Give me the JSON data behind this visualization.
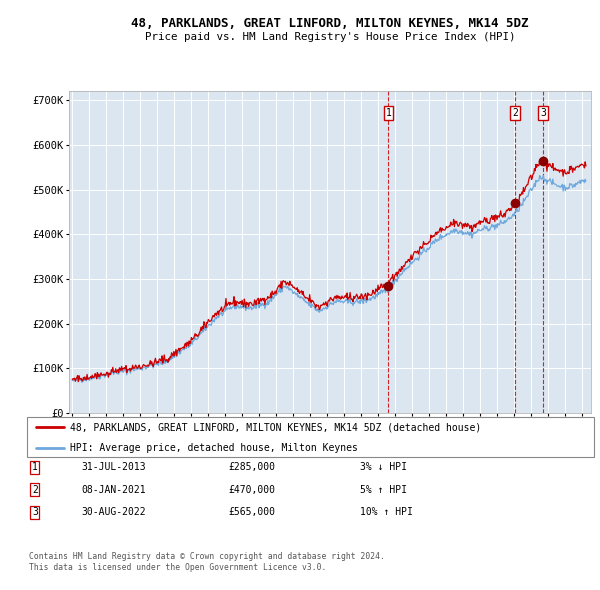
{
  "title": "48, PARKLANDS, GREAT LINFORD, MILTON KEYNES, MK14 5DZ",
  "subtitle": "Price paid vs. HM Land Registry's House Price Index (HPI)",
  "legend_line1": "48, PARKLANDS, GREAT LINFORD, MILTON KEYNES, MK14 5DZ (detached house)",
  "legend_line2": "HPI: Average price, detached house, Milton Keynes",
  "footer1": "Contains HM Land Registry data © Crown copyright and database right 2024.",
  "footer2": "This data is licensed under the Open Government Licence v3.0.",
  "transactions": [
    {
      "num": "1",
      "date": "31-JUL-2013",
      "year": 2013.58,
      "price": 285000,
      "price_str": "£285,000",
      "hpi_diff": "3% ↓ HPI"
    },
    {
      "num": "2",
      "date": "08-JAN-2021",
      "year": 2021.03,
      "price": 470000,
      "price_str": "£470,000",
      "hpi_diff": "5% ↑ HPI"
    },
    {
      "num": "3",
      "date": "30-AUG-2022",
      "year": 2022.67,
      "price": 565000,
      "price_str": "£565,000",
      "hpi_diff": "10% ↑ HPI"
    }
  ],
  "hpi_color": "#6fa8dc",
  "price_color": "#cc0000",
  "dot_color": "#8b0000",
  "dashed_line_color": "#cc0000",
  "plot_bg_color": "#dce6f1",
  "ylim": [
    0,
    720000
  ],
  "xlim_start": 1994.8,
  "xlim_end": 2025.5,
  "yticks": [
    0,
    100000,
    200000,
    300000,
    400000,
    500000,
    600000,
    700000
  ],
  "ytick_labels": [
    "£0",
    "£100K",
    "£200K",
    "£300K",
    "£400K",
    "£500K",
    "£600K",
    "£700K"
  ],
  "xtick_years": [
    1995,
    1996,
    1997,
    1998,
    1999,
    2000,
    2001,
    2002,
    2003,
    2004,
    2005,
    2006,
    2007,
    2008,
    2009,
    2010,
    2011,
    2012,
    2013,
    2014,
    2015,
    2016,
    2017,
    2018,
    2019,
    2020,
    2021,
    2022,
    2023,
    2024,
    2025
  ]
}
